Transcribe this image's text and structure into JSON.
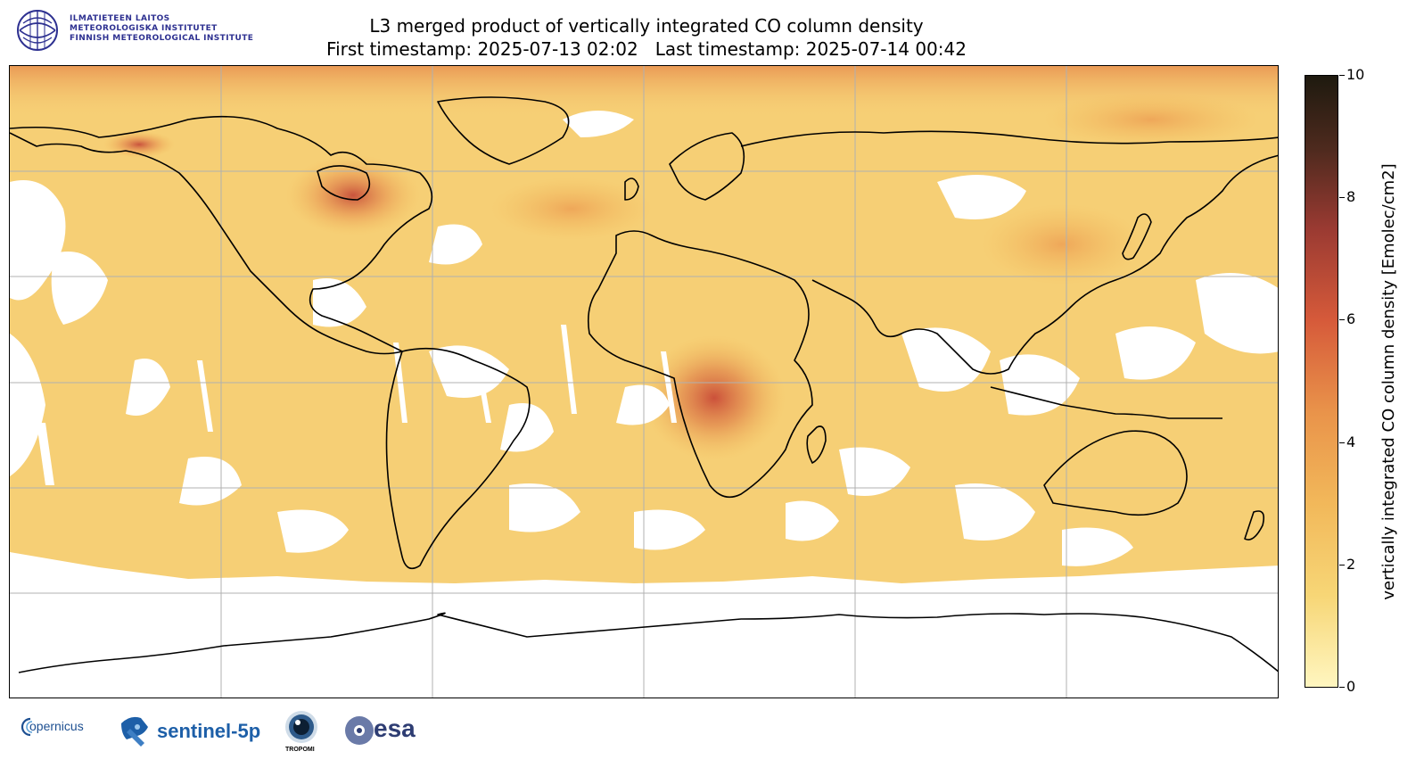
{
  "header": {
    "institute_lines": [
      "ILMATIETEEN LAITOS",
      "METEOROLOGISKA INSTITUTET",
      "FINNISH METEOROLOGICAL INSTITUTE"
    ],
    "title_line1": "L3 merged product of vertically integrated CO column density",
    "title_line2": "First timestamp: 2025-07-13 02:02   Last timestamp: 2025-07-14 00:42"
  },
  "colorbar": {
    "label": "vertically integrated CO column density [Emolec/cm2]",
    "ticks": [
      "10",
      "8",
      "6",
      "4",
      "2",
      "0"
    ],
    "range": [
      0,
      10
    ],
    "colors": [
      "#fff6c0",
      "#f7d676",
      "#f2b85a",
      "#e9934a",
      "#d65a3a",
      "#9a3a32",
      "#4e2a1e",
      "#1e1a0f"
    ]
  },
  "map": {
    "projection": "plate carree",
    "gridlines": true,
    "no_data_color": "#ffffff",
    "base_color": "#f7d277",
    "hotspot_color": "#d1553e"
  },
  "footer": {
    "copernicus": "opernicus",
    "sentinel": "sentinel-5p",
    "tropomi": "TROPOMI",
    "esa": "esa"
  }
}
